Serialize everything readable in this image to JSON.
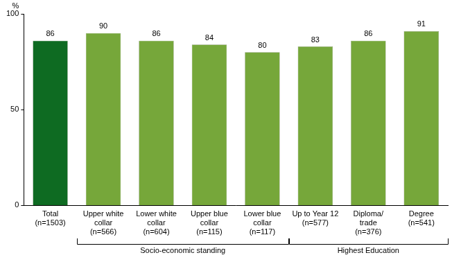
{
  "chart_data": {
    "type": "bar",
    "y_label": "%",
    "categories": [
      "Total\n(n=1503)",
      "Upper white\ncollar\n(n=566)",
      "Lower white\ncollar\n(n=604)",
      "Upper blue\ncollar\n(n=115)",
      "Lower blue\ncollar\n(n=117)",
      "Up to Year 12\n(n=577)",
      "Diploma/\ntrade\n(n=376)",
      "Degree\n(n=541)"
    ],
    "values": [
      86,
      90,
      86,
      84,
      80,
      83,
      86,
      91
    ],
    "colors": [
      "#0e6b22",
      "#76a73a",
      "#76a73a",
      "#76a73a",
      "#76a73a",
      "#76a73a",
      "#76a73a",
      "#76a73a"
    ],
    "ylim": [
      0,
      100
    ],
    "yticks": [
      0,
      50,
      100
    ],
    "grid": false,
    "data_labels": true,
    "groups": [
      {
        "name": "Socio-economic standing",
        "members": [
          "Upper white\ncollar\n(n=566)",
          "Lower white\ncollar\n(n=604)",
          "Upper blue\ncollar\n(n=115)",
          "Lower blue\ncollar\n(n=117)"
        ]
      },
      {
        "name": "Highest Education",
        "members": [
          "Up to Year 12\n(n=577)",
          "Diploma/\ntrade\n(n=376)",
          "Degree\n(n=541)"
        ]
      }
    ]
  }
}
